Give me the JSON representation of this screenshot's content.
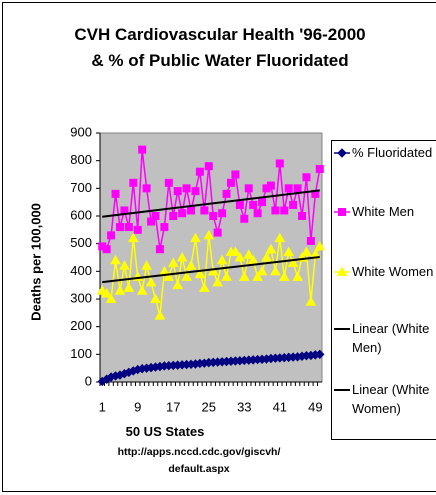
{
  "chart_data": {
    "type": "line",
    "title": "CVH Cardiovascular Health '96-2000 & % of Public Water Fluoridated",
    "x_label": "50 US States",
    "y_label": "Deaths per 100,000",
    "source": "http://apps.nccd.cdc.gov/giscvh/default.aspx",
    "categories": [
      1,
      null,
      null,
      null,
      null,
      null,
      null,
      null,
      9,
      null,
      null,
      null,
      null,
      null,
      null,
      null,
      17,
      null,
      null,
      null,
      null,
      null,
      null,
      null,
      25,
      null,
      null,
      null,
      null,
      null,
      null,
      null,
      33,
      null,
      null,
      null,
      null,
      null,
      null,
      null,
      41,
      null,
      null,
      null,
      null,
      null,
      null,
      null,
      49,
      null
    ],
    "ylim": [
      0,
      900
    ],
    "yticks": [
      0,
      100,
      200,
      300,
      400,
      500,
      600,
      700,
      800,
      900
    ],
    "grid": false,
    "plot_background": "#c0c0c0",
    "legend": "right",
    "series": [
      {
        "name": "% Fluoridated",
        "color": "#000080",
        "marker": "diamond",
        "values": [
          2,
          10,
          18,
          22,
          25,
          30,
          35,
          40,
          45,
          48,
          50,
          52,
          54,
          56,
          58,
          59,
          60,
          61,
          62,
          63,
          64,
          65,
          67,
          68,
          70,
          71,
          72,
          73,
          74,
          75,
          76,
          77,
          78,
          79,
          80,
          81,
          82,
          83,
          85,
          86,
          87,
          88,
          89,
          90,
          91,
          93,
          95,
          96,
          98,
          100
        ]
      },
      {
        "name": "White Men",
        "color": "#ff00ff",
        "marker": "square",
        "trendline": {
          "name": "Linear (White Men)",
          "color": "#000000"
        },
        "values": [
          490,
          480,
          530,
          680,
          560,
          620,
          560,
          720,
          550,
          840,
          700,
          580,
          600,
          480,
          560,
          720,
          600,
          690,
          610,
          700,
          620,
          690,
          760,
          620,
          780,
          600,
          540,
          610,
          680,
          720,
          750,
          640,
          590,
          700,
          640,
          610,
          650,
          700,
          710,
          620,
          790,
          620,
          700,
          640,
          700,
          600,
          740,
          510,
          680,
          770
        ]
      },
      {
        "name": "White Women",
        "color": "#ffff00",
        "marker": "triangle",
        "trendline": {
          "name": "Linear (White Women)",
          "color": "#000000"
        },
        "values": [
          330,
          320,
          300,
          440,
          330,
          420,
          340,
          520,
          380,
          330,
          420,
          360,
          300,
          240,
          400,
          380,
          430,
          350,
          450,
          380,
          420,
          520,
          390,
          340,
          530,
          400,
          360,
          440,
          380,
          470,
          470,
          450,
          380,
          460,
          440,
          380,
          400,
          450,
          480,
          400,
          520,
          380,
          470,
          430,
          380,
          450,
          470,
          290,
          460,
          490
        ]
      }
    ]
  }
}
